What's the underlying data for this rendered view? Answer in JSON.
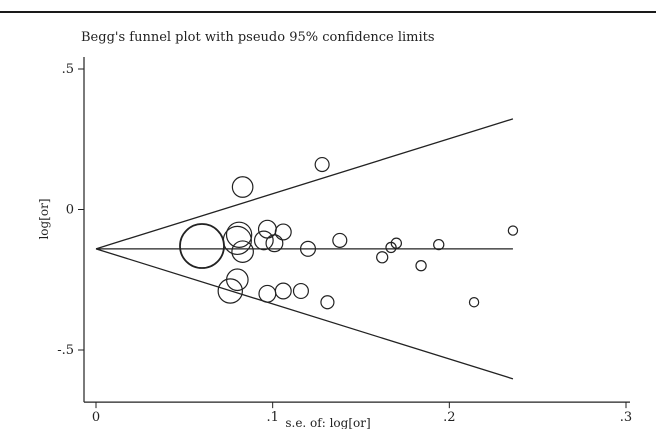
{
  "chart_data": {
    "type": "scatter",
    "title": "Begg's funnel plot with pseudo 95% confidence limits",
    "xlabel": "s.e. of: log[or]",
    "ylabel": "log[or]",
    "xlim": [
      0,
      0.3
    ],
    "ylim": [
      -0.65,
      0.5
    ],
    "x_ticks": [
      {
        "value": 0,
        "label": "0"
      },
      {
        "value": 0.1,
        "label": ".1"
      },
      {
        "value": 0.2,
        "label": ".2"
      },
      {
        "value": 0.3,
        "label": ".3"
      }
    ],
    "y_ticks": [
      {
        "value": 0.5,
        "label": ".5"
      },
      {
        "value": 0,
        "label": "0"
      },
      {
        "value": -0.5,
        "label": "-.5"
      }
    ],
    "pooled_estimate": -0.14,
    "funnel_x_max": 0.236,
    "grid": false,
    "points": [
      {
        "x": 0.06,
        "y": -0.13,
        "weight": 4.0
      },
      {
        "x": 0.083,
        "y": 0.08,
        "weight": 1.5
      },
      {
        "x": 0.128,
        "y": 0.16,
        "weight": 0.8
      },
      {
        "x": 0.081,
        "y": -0.09,
        "weight": 2.0
      },
      {
        "x": 0.08,
        "y": -0.11,
        "weight": 2.3
      },
      {
        "x": 0.083,
        "y": -0.15,
        "weight": 1.6
      },
      {
        "x": 0.097,
        "y": -0.07,
        "weight": 1.2
      },
      {
        "x": 0.095,
        "y": -0.11,
        "weight": 1.3
      },
      {
        "x": 0.101,
        "y": -0.12,
        "weight": 1.1
      },
      {
        "x": 0.106,
        "y": -0.08,
        "weight": 1.0
      },
      {
        "x": 0.12,
        "y": -0.14,
        "weight": 0.9
      },
      {
        "x": 0.138,
        "y": -0.11,
        "weight": 0.8
      },
      {
        "x": 0.162,
        "y": -0.17,
        "weight": 0.5
      },
      {
        "x": 0.167,
        "y": -0.135,
        "weight": 0.4
      },
      {
        "x": 0.17,
        "y": -0.12,
        "weight": 0.4
      },
      {
        "x": 0.184,
        "y": -0.2,
        "weight": 0.4
      },
      {
        "x": 0.194,
        "y": -0.125,
        "weight": 0.4
      },
      {
        "x": 0.214,
        "y": -0.33,
        "weight": 0.3
      },
      {
        "x": 0.236,
        "y": -0.075,
        "weight": 0.3
      },
      {
        "x": 0.08,
        "y": -0.25,
        "weight": 1.6
      },
      {
        "x": 0.076,
        "y": -0.29,
        "weight": 1.9
      },
      {
        "x": 0.097,
        "y": -0.3,
        "weight": 1.1
      },
      {
        "x": 0.106,
        "y": -0.29,
        "weight": 1.0
      },
      {
        "x": 0.116,
        "y": -0.29,
        "weight": 0.9
      },
      {
        "x": 0.131,
        "y": -0.33,
        "weight": 0.7
      }
    ]
  }
}
